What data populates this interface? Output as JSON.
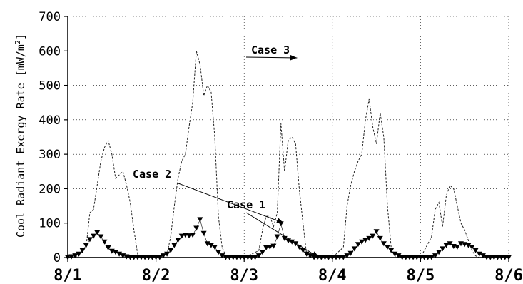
{
  "chart_data": {
    "type": "line",
    "title": "",
    "ylabel": "Cool Radiant Exergy Rate",
    "ylabel_unit_prefix": "[mW/m",
    "ylabel_unit_exp": "2",
    "ylabel_unit_suffix": "]",
    "xlabel": "",
    "ylim": [
      0,
      700
    ],
    "yticks": [
      "0",
      "100",
      "200",
      "300",
      "400",
      "500",
      "600",
      "700"
    ],
    "xlim": [
      0,
      5
    ],
    "xticks": [
      "8/1",
      "8/2",
      "8/3",
      "8/4",
      "8/5",
      "8/6"
    ],
    "grid": true,
    "grid_style": "dotted",
    "annotations": [
      {
        "text": "Case 1",
        "target_x": 2.85,
        "target_y": 0
      },
      {
        "text": "Case 2",
        "target_x": 2.45,
        "target_y": 100
      },
      {
        "text": "Case 3",
        "target_x": 2.6,
        "target_y": 580
      }
    ],
    "series": [
      {
        "name": "Case 1",
        "style": "solid",
        "color": "#000000",
        "x": [
          0,
          5
        ],
        "y": [
          0,
          0
        ]
      },
      {
        "name": "Case 2",
        "style": "triangle-markers",
        "color": "#000000",
        "x": [
          0.0,
          0.042,
          0.083,
          0.125,
          0.167,
          0.208,
          0.25,
          0.292,
          0.333,
          0.375,
          0.417,
          0.458,
          0.5,
          0.542,
          0.583,
          0.625,
          0.667,
          0.708,
          0.75,
          0.792,
          0.833,
          0.875,
          0.917,
          0.958,
          1.0,
          1.042,
          1.083,
          1.125,
          1.167,
          1.208,
          1.25,
          1.292,
          1.333,
          1.375,
          1.417,
          1.458,
          1.5,
          1.542,
          1.583,
          1.625,
          1.667,
          1.708,
          1.75,
          1.792,
          1.833,
          1.875,
          1.917,
          1.958,
          2.0,
          2.042,
          2.083,
          2.125,
          2.167,
          2.208,
          2.25,
          2.292,
          2.333,
          2.375,
          2.417,
          2.458,
          2.5,
          2.542,
          2.583,
          2.625,
          2.667,
          2.708,
          2.75,
          2.792,
          2.833,
          2.875,
          2.917,
          2.958,
          3.0,
          3.042,
          3.083,
          3.125,
          3.167,
          3.208,
          3.25,
          3.292,
          3.333,
          3.375,
          3.417,
          3.458,
          3.5,
          3.542,
          3.583,
          3.625,
          3.667,
          3.708,
          3.75,
          3.792,
          3.833,
          3.875,
          3.917,
          3.958,
          4.0,
          4.042,
          4.083,
          4.125,
          4.167,
          4.208,
          4.25,
          4.292,
          4.333,
          4.375,
          4.417,
          4.458,
          4.5,
          4.542,
          4.583,
          4.625,
          4.667,
          4.708,
          4.75,
          4.792,
          4.833,
          4.875,
          4.917,
          4.958,
          5.0
        ],
        "y": [
          0,
          2,
          5,
          10,
          20,
          35,
          52,
          62,
          72,
          60,
          45,
          28,
          18,
          15,
          10,
          5,
          2,
          0,
          0,
          0,
          0,
          0,
          0,
          0,
          0,
          0,
          5,
          10,
          20,
          35,
          50,
          62,
          65,
          63,
          65,
          85,
          110,
          70,
          40,
          35,
          30,
          15,
          5,
          0,
          0,
          0,
          0,
          0,
          0,
          0,
          0,
          0,
          5,
          15,
          28,
          30,
          33,
          60,
          98,
          55,
          48,
          45,
          40,
          30,
          20,
          10,
          5,
          0,
          0,
          0,
          0,
          0,
          0,
          0,
          0,
          0,
          5,
          12,
          25,
          38,
          45,
          50,
          55,
          62,
          75,
          55,
          40,
          30,
          20,
          10,
          5,
          0,
          0,
          0,
          0,
          0,
          0,
          0,
          0,
          0,
          5,
          15,
          25,
          35,
          40,
          32,
          30,
          40,
          38,
          35,
          30,
          20,
          10,
          5,
          0,
          0,
          0,
          0,
          0,
          0,
          0
        ]
      },
      {
        "name": "Case 3",
        "style": "dashed",
        "color": "#222222",
        "x": [
          0.0,
          0.125,
          0.208,
          0.25,
          0.292,
          0.333,
          0.375,
          0.417,
          0.458,
          0.5,
          0.542,
          0.583,
          0.625,
          0.667,
          0.708,
          0.75,
          0.792,
          0.833,
          1.0,
          1.125,
          1.167,
          1.208,
          1.25,
          1.292,
          1.333,
          1.375,
          1.417,
          1.458,
          1.5,
          1.542,
          1.583,
          1.625,
          1.667,
          1.708,
          1.75,
          1.792,
          1.833,
          2.0,
          2.167,
          2.208,
          2.25,
          2.292,
          2.333,
          2.375,
          2.417,
          2.458,
          2.5,
          2.542,
          2.583,
          2.625,
          2.667,
          2.708,
          2.75,
          3.0,
          3.125,
          3.167,
          3.208,
          3.25,
          3.292,
          3.333,
          3.375,
          3.417,
          3.458,
          3.5,
          3.542,
          3.583,
          3.625,
          3.667,
          3.708,
          3.75,
          3.792,
          3.833,
          4.0,
          4.125,
          4.167,
          4.208,
          4.25,
          4.292,
          4.333,
          4.375,
          4.417,
          4.458,
          4.5,
          4.542,
          4.583,
          4.625,
          4.667,
          4.708,
          4.75,
          4.792,
          4.833,
          4.875,
          5.0
        ],
        "y": [
          0,
          5,
          30,
          130,
          140,
          210,
          280,
          320,
          340,
          300,
          230,
          240,
          250,
          210,
          160,
          80,
          10,
          0,
          0,
          10,
          60,
          150,
          230,
          280,
          300,
          380,
          450,
          600,
          560,
          470,
          500,
          480,
          350,
          120,
          30,
          5,
          0,
          0,
          20,
          80,
          120,
          120,
          90,
          130,
          390,
          250,
          340,
          350,
          330,
          200,
          100,
          10,
          0,
          0,
          30,
          150,
          210,
          250,
          280,
          300,
          400,
          460,
          380,
          330,
          420,
          350,
          150,
          30,
          5,
          0,
          0,
          0,
          0,
          60,
          140,
          160,
          90,
          180,
          210,
          200,
          150,
          100,
          80,
          50,
          20,
          5,
          0,
          0,
          0,
          0,
          0,
          0,
          0
        ]
      }
    ]
  }
}
